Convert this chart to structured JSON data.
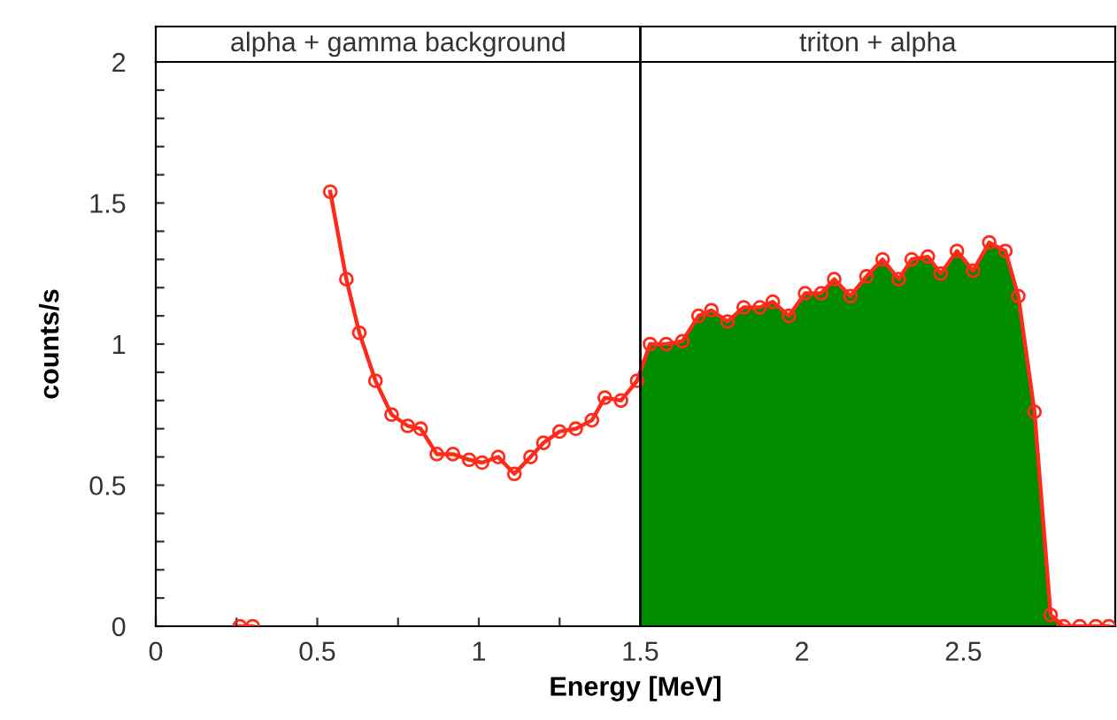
{
  "chart_data": {
    "type": "line",
    "xlabel": "Energy [MeV]",
    "ylabel": "counts/s",
    "xlim": [
      0,
      2.97
    ],
    "ylim": [
      0,
      2
    ],
    "xticks": [
      0,
      {
        "value": 0.25,
        "label": null
      },
      0.5,
      {
        "value": 0.75,
        "label": null
      },
      1,
      {
        "value": 1.25,
        "label": null
      },
      1.5,
      {
        "value": 1.75,
        "label": null
      },
      2,
      {
        "value": 2.25,
        "label": null
      },
      2.5,
      {
        "value": 2.75,
        "label": null
      }
    ],
    "yticks": [
      0,
      {
        "value": 0.1,
        "label": null
      },
      {
        "value": 0.2,
        "label": null
      },
      {
        "value": 0.3,
        "label": null
      },
      {
        "value": 0.4,
        "label": null
      },
      0.5,
      {
        "value": 0.6,
        "label": null
      },
      {
        "value": 0.7,
        "label": null
      },
      {
        "value": 0.8,
        "label": null
      },
      {
        "value": 0.9,
        "label": null
      },
      1,
      {
        "value": 1.1,
        "label": null
      },
      {
        "value": 1.2,
        "label": null
      },
      {
        "value": 1.3,
        "label": null
      },
      {
        "value": 1.4,
        "label": null
      },
      1.5,
      {
        "value": 1.6,
        "label": null
      },
      {
        "value": 1.7,
        "label": null
      },
      {
        "value": 1.8,
        "label": null
      },
      {
        "value": 1.9,
        "label": null
      },
      2
    ],
    "grid": false,
    "legend": false,
    "annotations": [
      "alpha + gamma background",
      "triton + alpha"
    ],
    "ref_lines": [
      {
        "axis": "x",
        "value": 1.5,
        "color": "#000000"
      }
    ],
    "series": [
      {
        "type": "area",
        "color": "#008c00",
        "x": [
          1.5,
          1.53,
          1.58,
          1.63,
          1.68,
          1.72,
          1.77,
          1.82,
          1.87,
          1.91,
          1.96,
          2.01,
          2.06,
          2.1,
          2.15,
          2.2,
          2.25,
          2.3,
          2.34,
          2.39,
          2.43,
          2.48,
          2.53,
          2.58,
          2.63,
          2.67,
          2.72,
          2.77,
          2.81
        ],
        "values": [
          0.93,
          1.0,
          1.0,
          1.01,
          1.1,
          1.12,
          1.08,
          1.13,
          1.13,
          1.15,
          1.1,
          1.18,
          1.18,
          1.23,
          1.17,
          1.24,
          1.3,
          1.23,
          1.3,
          1.31,
          1.25,
          1.33,
          1.26,
          1.36,
          1.33,
          1.17,
          0.76,
          0.04,
          0
        ]
      },
      {
        "color": "#ff2a1a",
        "marker": "circle",
        "x": [
          0.26,
          0.3,
          0.35,
          0.4,
          0.45,
          0.49,
          0.54,
          0.59,
          0.63,
          0.68,
          0.73,
          0.78,
          0.82,
          0.87,
          0.92,
          0.97,
          1.01,
          1.06,
          1.11,
          1.16,
          1.2,
          1.25,
          1.3,
          1.35,
          1.39,
          1.44,
          1.49,
          1.53,
          1.58,
          1.63,
          1.68,
          1.72,
          1.77,
          1.82,
          1.87,
          1.91,
          1.96,
          2.01,
          2.06,
          2.1,
          2.15,
          2.2,
          2.25,
          2.3,
          2.34,
          2.39,
          2.43,
          2.48,
          2.53,
          2.58,
          2.63,
          2.67,
          2.72,
          2.77,
          2.81,
          2.86,
          2.91,
          2.95
        ],
        "values": [
          0,
          0,
          null,
          null,
          null,
          null,
          1.54,
          1.23,
          1.04,
          0.87,
          0.75,
          0.71,
          0.7,
          0.61,
          0.61,
          0.59,
          0.58,
          0.6,
          0.54,
          0.6,
          0.65,
          0.69,
          0.7,
          0.73,
          0.81,
          0.8,
          0.87,
          1.0,
          1.0,
          1.01,
          1.1,
          1.12,
          1.08,
          1.13,
          1.13,
          1.15,
          1.1,
          1.18,
          1.18,
          1.23,
          1.17,
          1.24,
          1.3,
          1.23,
          1.3,
          1.31,
          1.25,
          1.33,
          1.26,
          1.36,
          1.33,
          1.17,
          0.76,
          0.04,
          0,
          0,
          0,
          0
        ]
      }
    ]
  }
}
